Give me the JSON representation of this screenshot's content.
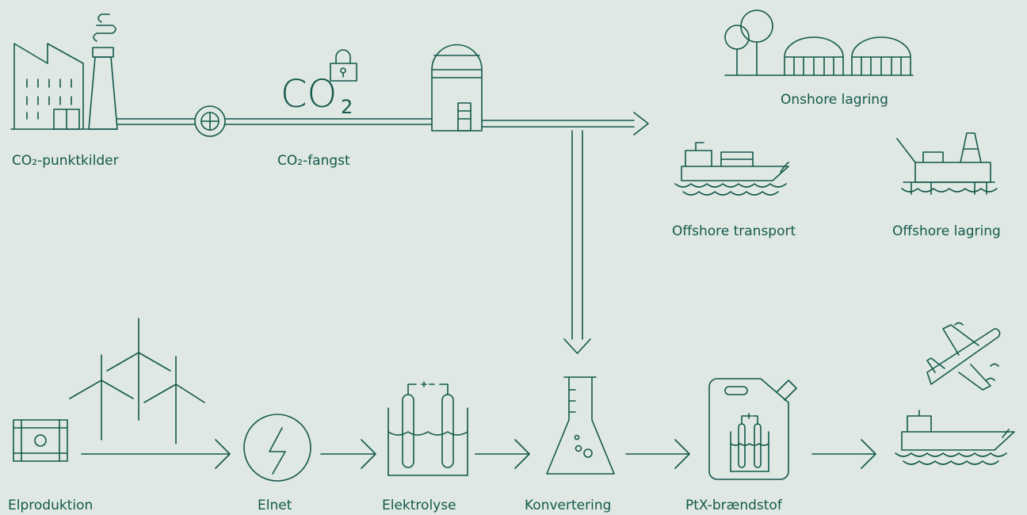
{
  "co2_icon": {
    "main": "CO",
    "sub": "2"
  },
  "nodes": [
    {
      "label": "CO₂-punktkilder"
    },
    {
      "label": "CO₂-fangst"
    },
    {
      "label": "Onshore lagring"
    },
    {
      "label": "Offshore transport"
    },
    {
      "label": "Offshore lagring"
    },
    {
      "label": "Elproduktion"
    },
    {
      "label": "Elnet"
    },
    {
      "label": "Elektrolyse"
    },
    {
      "label": "Konvertering"
    },
    {
      "label": "PtX-brændstof"
    }
  ]
}
